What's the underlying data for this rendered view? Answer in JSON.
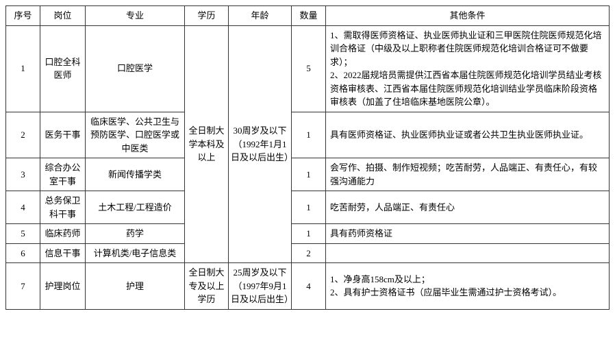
{
  "table": {
    "headers": [
      "序号",
      "岗位",
      "专业",
      "学历",
      "年龄",
      "数量",
      "其他条件"
    ],
    "rows": [
      {
        "seq": "1",
        "post": "口腔全科医师",
        "major": "口腔医学",
        "edu": "全日制大学本科及以上",
        "age": "30周岁及以下（1992年1月1日及以后出生）",
        "qty": "5",
        "other": "1、需取得医师资格证、执业医师执业证和三甲医院住院医师规范化培训合格证（中级及以上职称者住院医师规范化培训合格证可不做要求）；\n2、2022届规培员需提供江西省本届住院医师规范化培训学员结业考核资格审核表、江西省本届住院医师规范化培训结业学员临床阶段资格审核表（加盖了住培临床基地医院公章）。"
      },
      {
        "seq": "2",
        "post": "医务干事",
        "major": "临床医学、公共卫生与预防医学、口腔医学或中医类",
        "qty": "1",
        "other": "具有医师资格证、执业医师执业证或者公共卫生执业医师执业证。"
      },
      {
        "seq": "3",
        "post": "综合办公室干事",
        "major": "新闻传播学类",
        "qty": "1",
        "other": "会写作、拍摄、制作短视频；吃苦耐劳，人品端正、有责任心，有较强沟通能力"
      },
      {
        "seq": "4",
        "post": "总务保卫科干事",
        "major": "土木工程/工程造价",
        "qty": "1",
        "other": "吃苦耐劳，人品端正、有责任心"
      },
      {
        "seq": "5",
        "post": "临床药师",
        "major": "药学",
        "qty": "1",
        "other": "具有药师资格证"
      },
      {
        "seq": "6",
        "post": "信息干事",
        "major": "计算机类/电子信息类",
        "qty": "2",
        "other": ""
      },
      {
        "seq": "7",
        "post": "护理岗位",
        "major": "护理",
        "edu": "全日制大专及以上学历",
        "age": "25周岁及以下（1997年9月1日及以后出生）",
        "qty": "4",
        "other": "1、净身高158cm及以上；\n2、具有护士资格证书（应届毕业生需通过护士资格考试）。"
      }
    ],
    "styles": {
      "border_color": "#333333",
      "text_color": "#000000",
      "background_color": "#ffffff",
      "font_size": 13,
      "font_family": "SimSun"
    },
    "column_widths": {
      "seq": 50,
      "post": 66,
      "major": 145,
      "edu": 64,
      "age": 92,
      "qty": 50
    },
    "merge": {
      "edu_rowspan_1": 6,
      "age_rowspan_1": 6
    }
  }
}
